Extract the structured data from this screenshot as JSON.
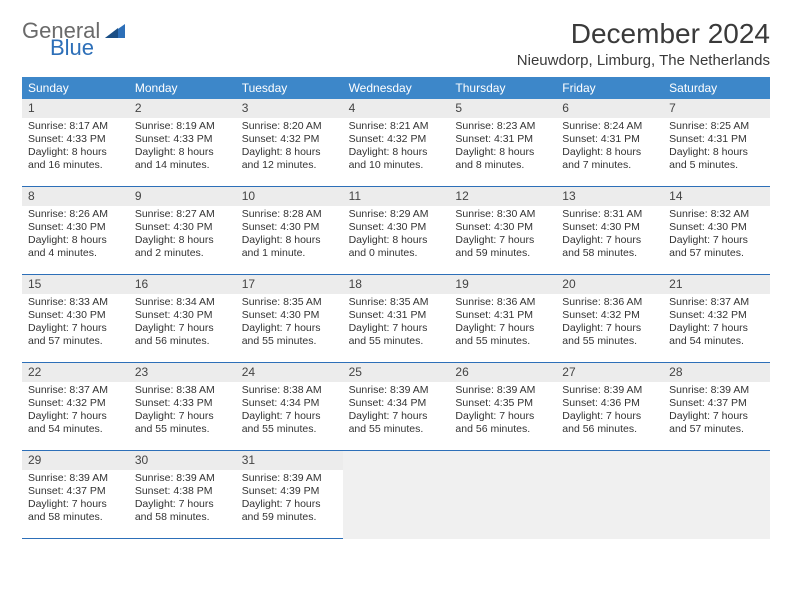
{
  "logo": {
    "text1": "General",
    "text2": "Blue"
  },
  "title": "December 2024",
  "subtitle": "Nieuwdorp, Limburg, The Netherlands",
  "colors": {
    "header_bg": "#3d87c9",
    "header_text": "#ffffff",
    "daynum_bg": "#ececec",
    "cell_border": "#2d6fb8",
    "logo_gray": "#6a6a6a",
    "logo_blue": "#2d6fb8",
    "page_bg": "#ffffff",
    "text_color": "#333333"
  },
  "weekdays": [
    "Sunday",
    "Monday",
    "Tuesday",
    "Wednesday",
    "Thursday",
    "Friday",
    "Saturday"
  ],
  "days": [
    {
      "n": 1,
      "sunrise": "8:17 AM",
      "sunset": "4:33 PM",
      "day_h": 8,
      "day_m": 16
    },
    {
      "n": 2,
      "sunrise": "8:19 AM",
      "sunset": "4:33 PM",
      "day_h": 8,
      "day_m": 14
    },
    {
      "n": 3,
      "sunrise": "8:20 AM",
      "sunset": "4:32 PM",
      "day_h": 8,
      "day_m": 12
    },
    {
      "n": 4,
      "sunrise": "8:21 AM",
      "sunset": "4:32 PM",
      "day_h": 8,
      "day_m": 10
    },
    {
      "n": 5,
      "sunrise": "8:23 AM",
      "sunset": "4:31 PM",
      "day_h": 8,
      "day_m": 8
    },
    {
      "n": 6,
      "sunrise": "8:24 AM",
      "sunset": "4:31 PM",
      "day_h": 8,
      "day_m": 7
    },
    {
      "n": 7,
      "sunrise": "8:25 AM",
      "sunset": "4:31 PM",
      "day_h": 8,
      "day_m": 5
    },
    {
      "n": 8,
      "sunrise": "8:26 AM",
      "sunset": "4:30 PM",
      "day_h": 8,
      "day_m": 4
    },
    {
      "n": 9,
      "sunrise": "8:27 AM",
      "sunset": "4:30 PM",
      "day_h": 8,
      "day_m": 2
    },
    {
      "n": 10,
      "sunrise": "8:28 AM",
      "sunset": "4:30 PM",
      "day_h": 8,
      "day_m": 1
    },
    {
      "n": 11,
      "sunrise": "8:29 AM",
      "sunset": "4:30 PM",
      "day_h": 8,
      "day_m": 0
    },
    {
      "n": 12,
      "sunrise": "8:30 AM",
      "sunset": "4:30 PM",
      "day_h": 7,
      "day_m": 59
    },
    {
      "n": 13,
      "sunrise": "8:31 AM",
      "sunset": "4:30 PM",
      "day_h": 7,
      "day_m": 58
    },
    {
      "n": 14,
      "sunrise": "8:32 AM",
      "sunset": "4:30 PM",
      "day_h": 7,
      "day_m": 57
    },
    {
      "n": 15,
      "sunrise": "8:33 AM",
      "sunset": "4:30 PM",
      "day_h": 7,
      "day_m": 57
    },
    {
      "n": 16,
      "sunrise": "8:34 AM",
      "sunset": "4:30 PM",
      "day_h": 7,
      "day_m": 56
    },
    {
      "n": 17,
      "sunrise": "8:35 AM",
      "sunset": "4:30 PM",
      "day_h": 7,
      "day_m": 55
    },
    {
      "n": 18,
      "sunrise": "8:35 AM",
      "sunset": "4:31 PM",
      "day_h": 7,
      "day_m": 55
    },
    {
      "n": 19,
      "sunrise": "8:36 AM",
      "sunset": "4:31 PM",
      "day_h": 7,
      "day_m": 55
    },
    {
      "n": 20,
      "sunrise": "8:36 AM",
      "sunset": "4:32 PM",
      "day_h": 7,
      "day_m": 55
    },
    {
      "n": 21,
      "sunrise": "8:37 AM",
      "sunset": "4:32 PM",
      "day_h": 7,
      "day_m": 54
    },
    {
      "n": 22,
      "sunrise": "8:37 AM",
      "sunset": "4:32 PM",
      "day_h": 7,
      "day_m": 54
    },
    {
      "n": 23,
      "sunrise": "8:38 AM",
      "sunset": "4:33 PM",
      "day_h": 7,
      "day_m": 55
    },
    {
      "n": 24,
      "sunrise": "8:38 AM",
      "sunset": "4:34 PM",
      "day_h": 7,
      "day_m": 55
    },
    {
      "n": 25,
      "sunrise": "8:39 AM",
      "sunset": "4:34 PM",
      "day_h": 7,
      "day_m": 55
    },
    {
      "n": 26,
      "sunrise": "8:39 AM",
      "sunset": "4:35 PM",
      "day_h": 7,
      "day_m": 56
    },
    {
      "n": 27,
      "sunrise": "8:39 AM",
      "sunset": "4:36 PM",
      "day_h": 7,
      "day_m": 56
    },
    {
      "n": 28,
      "sunrise": "8:39 AM",
      "sunset": "4:37 PM",
      "day_h": 7,
      "day_m": 57
    },
    {
      "n": 29,
      "sunrise": "8:39 AM",
      "sunset": "4:37 PM",
      "day_h": 7,
      "day_m": 58
    },
    {
      "n": 30,
      "sunrise": "8:39 AM",
      "sunset": "4:38 PM",
      "day_h": 7,
      "day_m": 58
    },
    {
      "n": 31,
      "sunrise": "8:39 AM",
      "sunset": "4:39 PM",
      "day_h": 7,
      "day_m": 59
    }
  ],
  "labels": {
    "sunrise": "Sunrise:",
    "sunset": "Sunset:",
    "daylight": "Daylight:",
    "hours": "hours",
    "and": "and",
    "minute": "minute",
    "minutes": "minutes"
  }
}
